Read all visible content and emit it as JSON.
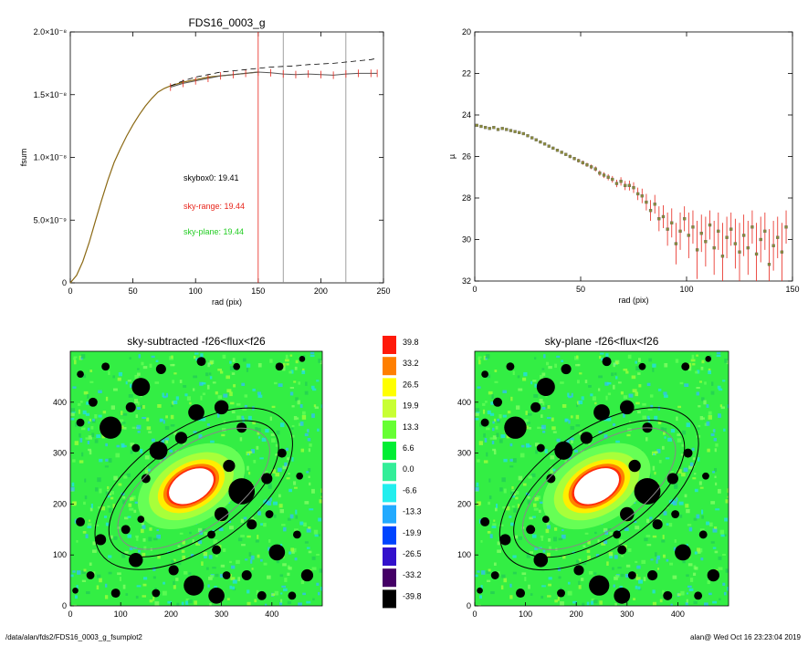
{
  "footer": {
    "path": "/data/alan/fds2/FDS16_0003_g_fsumplot2",
    "stamp": "alan@  Wed Oct 16 23:23:04 2019"
  },
  "colors": {
    "curve": "#8b6914",
    "red": "#e8261c",
    "gray": "#888888",
    "green": "#22cc22",
    "mask": "#000000"
  },
  "chart_data": [
    {
      "type": "line",
      "title": "FDS16_0003_g",
      "xlabel": "rad (pix)",
      "ylabel": "fsum",
      "xlim": [
        0,
        250
      ],
      "ylim": [
        0,
        2e-08
      ],
      "xticks": [
        0,
        50,
        100,
        150,
        200,
        250
      ],
      "yticks": [
        {
          "value": 0,
          "label": "0"
        },
        {
          "value": 5e-09,
          "label": "5.0×10⁻⁹"
        },
        {
          "value": 1e-08,
          "label": "1.0×10⁻⁸"
        },
        {
          "value": 1.5e-08,
          "label": "1.5×10⁻⁸"
        },
        {
          "value": 2e-08,
          "label": "2.0×10⁻⁸"
        }
      ],
      "series": [
        {
          "style": "solid",
          "x": [
            0,
            5,
            10,
            15,
            20,
            25,
            30,
            35,
            40,
            45,
            50,
            55,
            60,
            65,
            70,
            75,
            80,
            90,
            100,
            110,
            120,
            130,
            140,
            150
          ],
          "y": [
            0,
            6e-10,
            1.7e-09,
            3.2e-09,
            4.9e-09,
            6.6e-09,
            8.2e-09,
            9.6e-09,
            1.07e-08,
            1.17e-08,
            1.26e-08,
            1.34e-08,
            1.41e-08,
            1.47e-08,
            1.52e-08,
            1.55e-08,
            1.57e-08,
            1.6e-08,
            1.62e-08,
            1.64e-08,
            1.65e-08,
            1.66e-08,
            1.67e-08,
            1.68e-08
          ]
        },
        {
          "style": "errorbars",
          "x": [
            80,
            90,
            100,
            110,
            120,
            130,
            140,
            150,
            160,
            170,
            180,
            190,
            200,
            210,
            220,
            230,
            240,
            245
          ],
          "y": [
            1.56e-08,
            1.59e-08,
            1.61e-08,
            1.63e-08,
            1.65e-08,
            1.66e-08,
            1.67e-08,
            1.68e-08,
            1.675e-08,
            1.665e-08,
            1.66e-08,
            1.665e-08,
            1.66e-08,
            1.655e-08,
            1.665e-08,
            1.67e-08,
            1.67e-08,
            1.67e-08
          ],
          "err": 3e-10
        },
        {
          "style": "dashed",
          "x": [
            80,
            90,
            100,
            110,
            120,
            130,
            140,
            150,
            160,
            170,
            180,
            190,
            200,
            210,
            220,
            230,
            240,
            245
          ],
          "y": [
            1.57e-08,
            1.61e-08,
            1.64e-08,
            1.66e-08,
            1.68e-08,
            1.69e-08,
            1.7e-08,
            1.71e-08,
            1.72e-08,
            1.725e-08,
            1.73e-08,
            1.74e-08,
            1.745e-08,
            1.75e-08,
            1.76e-08,
            1.77e-08,
            1.78e-08,
            1.79e-08
          ]
        }
      ],
      "vlines": [
        {
          "x": 150,
          "color": "red"
        },
        {
          "x": 170,
          "color": "gray"
        },
        {
          "x": 220,
          "color": "gray"
        }
      ],
      "annotations": [
        {
          "text": "skybox0: 19.41",
          "color": "black"
        },
        {
          "text": "sky-range: 19.44",
          "color": "red"
        },
        {
          "text": "sky-plane: 19.44",
          "color": "green"
        }
      ]
    },
    {
      "type": "scatter",
      "title": "",
      "xlabel": "rad (pix)",
      "ylabel": "µ",
      "xlim": [
        0,
        150
      ],
      "ylim": [
        32,
        20
      ],
      "yreversed": true,
      "xticks": [
        0,
        50,
        100,
        150
      ],
      "yticks": [
        20,
        22,
        24,
        26,
        28,
        30,
        32
      ],
      "points": {
        "x": [
          1,
          3,
          5,
          7,
          9,
          11,
          13,
          15,
          17,
          19,
          21,
          23,
          25,
          27,
          29,
          31,
          33,
          35,
          37,
          39,
          41,
          43,
          45,
          47,
          49,
          51,
          53,
          55,
          57,
          59,
          61,
          63,
          65,
          67,
          69,
          71,
          73,
          75,
          77,
          79,
          81,
          83,
          85,
          87,
          89,
          91,
          93,
          95,
          97,
          99,
          101,
          103,
          105,
          107,
          109,
          111,
          113,
          115,
          117,
          119,
          121,
          123,
          125,
          127,
          129,
          131,
          133,
          135,
          137,
          139,
          141,
          143,
          145,
          147
        ],
        "y": [
          24.5,
          24.55,
          24.6,
          24.65,
          24.6,
          24.7,
          24.65,
          24.7,
          24.75,
          24.8,
          24.85,
          24.9,
          25.0,
          25.1,
          25.2,
          25.3,
          25.4,
          25.5,
          25.6,
          25.7,
          25.8,
          25.9,
          26.0,
          26.1,
          26.2,
          26.3,
          26.4,
          26.5,
          26.6,
          26.8,
          26.9,
          27.0,
          27.1,
          27.3,
          27.2,
          27.4,
          27.4,
          27.5,
          27.8,
          27.9,
          28.2,
          28.6,
          28.3,
          29.0,
          28.9,
          29.5,
          29.2,
          30.2,
          29.6,
          29.0,
          29.8,
          29.4,
          30.5,
          29.7,
          30.1,
          29.3,
          30.4,
          29.6,
          30.8,
          29.9,
          29.5,
          30.2,
          30.6,
          29.8,
          30.4,
          29.4,
          30.7,
          30.0,
          29.6,
          31.2,
          30.3,
          29.9,
          30.6,
          29.4
        ],
        "err": [
          0.05,
          0.05,
          0.05,
          0.05,
          0.05,
          0.05,
          0.05,
          0.05,
          0.05,
          0.05,
          0.05,
          0.05,
          0.05,
          0.05,
          0.05,
          0.05,
          0.06,
          0.06,
          0.06,
          0.06,
          0.07,
          0.07,
          0.08,
          0.08,
          0.09,
          0.1,
          0.1,
          0.11,
          0.12,
          0.13,
          0.14,
          0.15,
          0.16,
          0.18,
          0.2,
          0.22,
          0.24,
          0.26,
          0.3,
          0.35,
          0.4,
          0.5,
          0.45,
          0.6,
          0.55,
          0.8,
          0.7,
          1.0,
          0.9,
          0.6,
          1.1,
          0.8,
          1.4,
          0.9,
          1.2,
          0.7,
          1.3,
          0.9,
          1.6,
          1.0,
          0.8,
          1.2,
          1.4,
          1.0,
          1.3,
          0.8,
          1.5,
          1.1,
          0.9,
          1.7,
          1.2,
          1.0,
          1.4,
          0.8
        ]
      }
    },
    {
      "type": "heatmap",
      "title": "sky-subtracted -f26<flux<f26",
      "xlim": [
        0,
        500
      ],
      "ylim": [
        0,
        500
      ],
      "xticks": [
        0,
        100,
        200,
        300,
        400
      ],
      "yticks": [
        0,
        100,
        200,
        300,
        400
      ],
      "ellipses": [
        {
          "cx": 245,
          "cy": 230,
          "a": 225,
          "b": 115,
          "angle_deg": 35,
          "color": "black"
        },
        {
          "cx": 245,
          "cy": 230,
          "a": 195,
          "b": 92,
          "angle_deg": 35,
          "color": "black"
        },
        {
          "cx": 245,
          "cy": 230,
          "a": 175,
          "b": 80,
          "angle_deg": 35,
          "color": "gray"
        }
      ]
    },
    {
      "type": "heatmap",
      "title": "sky-plane -f26<flux<f26",
      "xlim": [
        0,
        500
      ],
      "ylim": [
        0,
        500
      ],
      "xticks": [
        0,
        100,
        200,
        300,
        400
      ],
      "yticks": [
        0,
        100,
        200,
        300,
        400
      ],
      "ellipses": [
        {
          "cx": 245,
          "cy": 230,
          "a": 225,
          "b": 115,
          "angle_deg": 35,
          "color": "black"
        },
        {
          "cx": 245,
          "cy": 230,
          "a": 195,
          "b": 92,
          "angle_deg": 35,
          "color": "black"
        },
        {
          "cx": 245,
          "cy": 230,
          "a": 175,
          "b": 80,
          "angle_deg": 35,
          "color": "gray"
        }
      ]
    }
  ],
  "colorbar": {
    "labels": [
      "39.8",
      "33.2",
      "26.5",
      "19.9",
      "13.3",
      "6.6",
      "0.0",
      "-6.6",
      "-13.3",
      "-19.9",
      "-26.5",
      "-33.2",
      "-39.8"
    ],
    "colors": [
      "#ff1a0a",
      "#ff7f00",
      "#ffff00",
      "#c8ff33",
      "#66ff33",
      "#00ee33",
      "#33ee99",
      "#22eeee",
      "#22aaff",
      "#0044ff",
      "#3311cc",
      "#440066",
      "#000000"
    ]
  },
  "galaxy": {
    "cx": 240,
    "cy": 235,
    "core_rx": 48,
    "core_ry": 30
  },
  "masks": [
    {
      "x": 140,
      "y": 430,
      "r": 18
    },
    {
      "x": 180,
      "y": 465,
      "r": 10
    },
    {
      "x": 70,
      "y": 470,
      "r": 8
    },
    {
      "x": 20,
      "y": 455,
      "r": 7
    },
    {
      "x": 260,
      "y": 480,
      "r": 9
    },
    {
      "x": 330,
      "y": 470,
      "r": 7
    },
    {
      "x": 415,
      "y": 470,
      "r": 8
    },
    {
      "x": 460,
      "y": 485,
      "r": 6
    },
    {
      "x": 80,
      "y": 350,
      "r": 22
    },
    {
      "x": 45,
      "y": 400,
      "r": 9
    },
    {
      "x": 120,
      "y": 390,
      "r": 10
    },
    {
      "x": 250,
      "y": 380,
      "r": 16
    },
    {
      "x": 300,
      "y": 390,
      "r": 14
    },
    {
      "x": 340,
      "y": 350,
      "r": 10
    },
    {
      "x": 220,
      "y": 330,
      "r": 12
    },
    {
      "x": 175,
      "y": 305,
      "r": 18
    },
    {
      "x": 130,
      "y": 310,
      "r": 8
    },
    {
      "x": 150,
      "y": 250,
      "r": 9
    },
    {
      "x": 315,
      "y": 275,
      "r": 12
    },
    {
      "x": 340,
      "y": 225,
      "r": 26
    },
    {
      "x": 390,
      "y": 250,
      "r": 11
    },
    {
      "x": 420,
      "y": 300,
      "r": 9
    },
    {
      "x": 455,
      "y": 255,
      "r": 7
    },
    {
      "x": 300,
      "y": 180,
      "r": 14
    },
    {
      "x": 360,
      "y": 160,
      "r": 10
    },
    {
      "x": 280,
      "y": 140,
      "r": 8
    },
    {
      "x": 395,
      "y": 180,
      "r": 8
    },
    {
      "x": 140,
      "y": 170,
      "r": 7
    },
    {
      "x": 110,
      "y": 150,
      "r": 9
    },
    {
      "x": 20,
      "y": 360,
      "r": 8
    },
    {
      "x": 20,
      "y": 165,
      "r": 9
    },
    {
      "x": 60,
      "y": 130,
      "r": 11
    },
    {
      "x": 130,
      "y": 90,
      "r": 14
    },
    {
      "x": 205,
      "y": 70,
      "r": 10
    },
    {
      "x": 290,
      "y": 110,
      "r": 9
    },
    {
      "x": 410,
      "y": 105,
      "r": 16
    },
    {
      "x": 450,
      "y": 140,
      "r": 8
    },
    {
      "x": 470,
      "y": 60,
      "r": 12
    },
    {
      "x": 245,
      "y": 40,
      "r": 20
    },
    {
      "x": 290,
      "y": 20,
      "r": 16
    },
    {
      "x": 350,
      "y": 60,
      "r": 10
    },
    {
      "x": 380,
      "y": 20,
      "r": 9
    },
    {
      "x": 440,
      "y": 20,
      "r": 8
    },
    {
      "x": 170,
      "y": 25,
      "r": 8
    },
    {
      "x": 90,
      "y": 25,
      "r": 9
    },
    {
      "x": 40,
      "y": 60,
      "r": 8
    },
    {
      "x": 10,
      "y": 30,
      "r": 6
    },
    {
      "x": 310,
      "y": 60,
      "r": 8
    }
  ]
}
